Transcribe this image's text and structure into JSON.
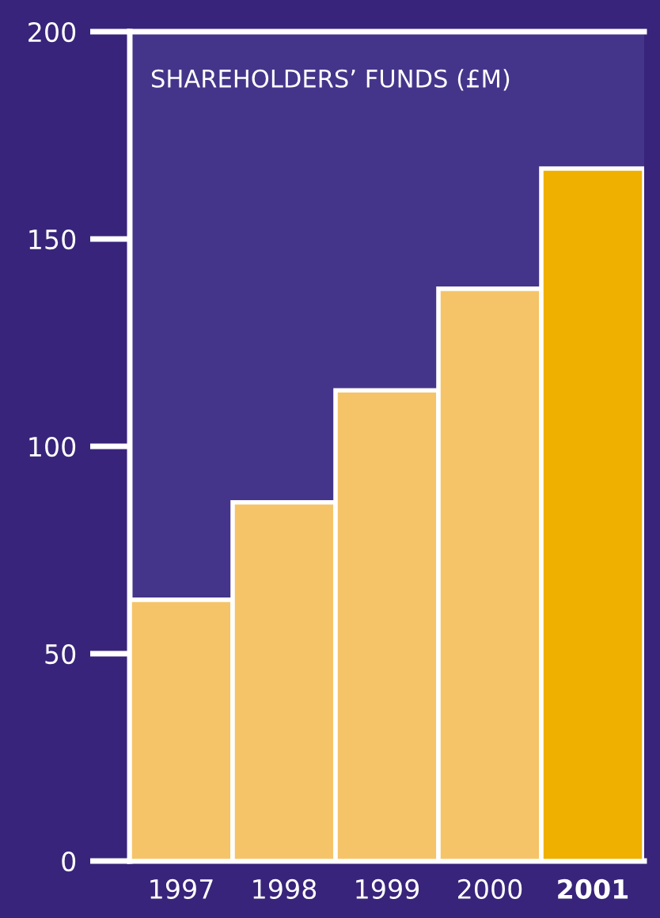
{
  "chart_data": {
    "type": "bar",
    "title": "SHAREHOLDERS’ FUNDS (£M)",
    "categories": [
      "1997",
      "1998",
      "1999",
      "2000",
      "2001"
    ],
    "values": [
      63,
      86.5,
      113.5,
      138,
      167
    ],
    "colors": [
      "#f5c469",
      "#f5c469",
      "#f5c469",
      "#f5c469",
      "#f0b000"
    ],
    "ylim": [
      0,
      200
    ],
    "yticks": [
      0,
      50,
      100,
      150,
      200
    ],
    "grid": false
  }
}
